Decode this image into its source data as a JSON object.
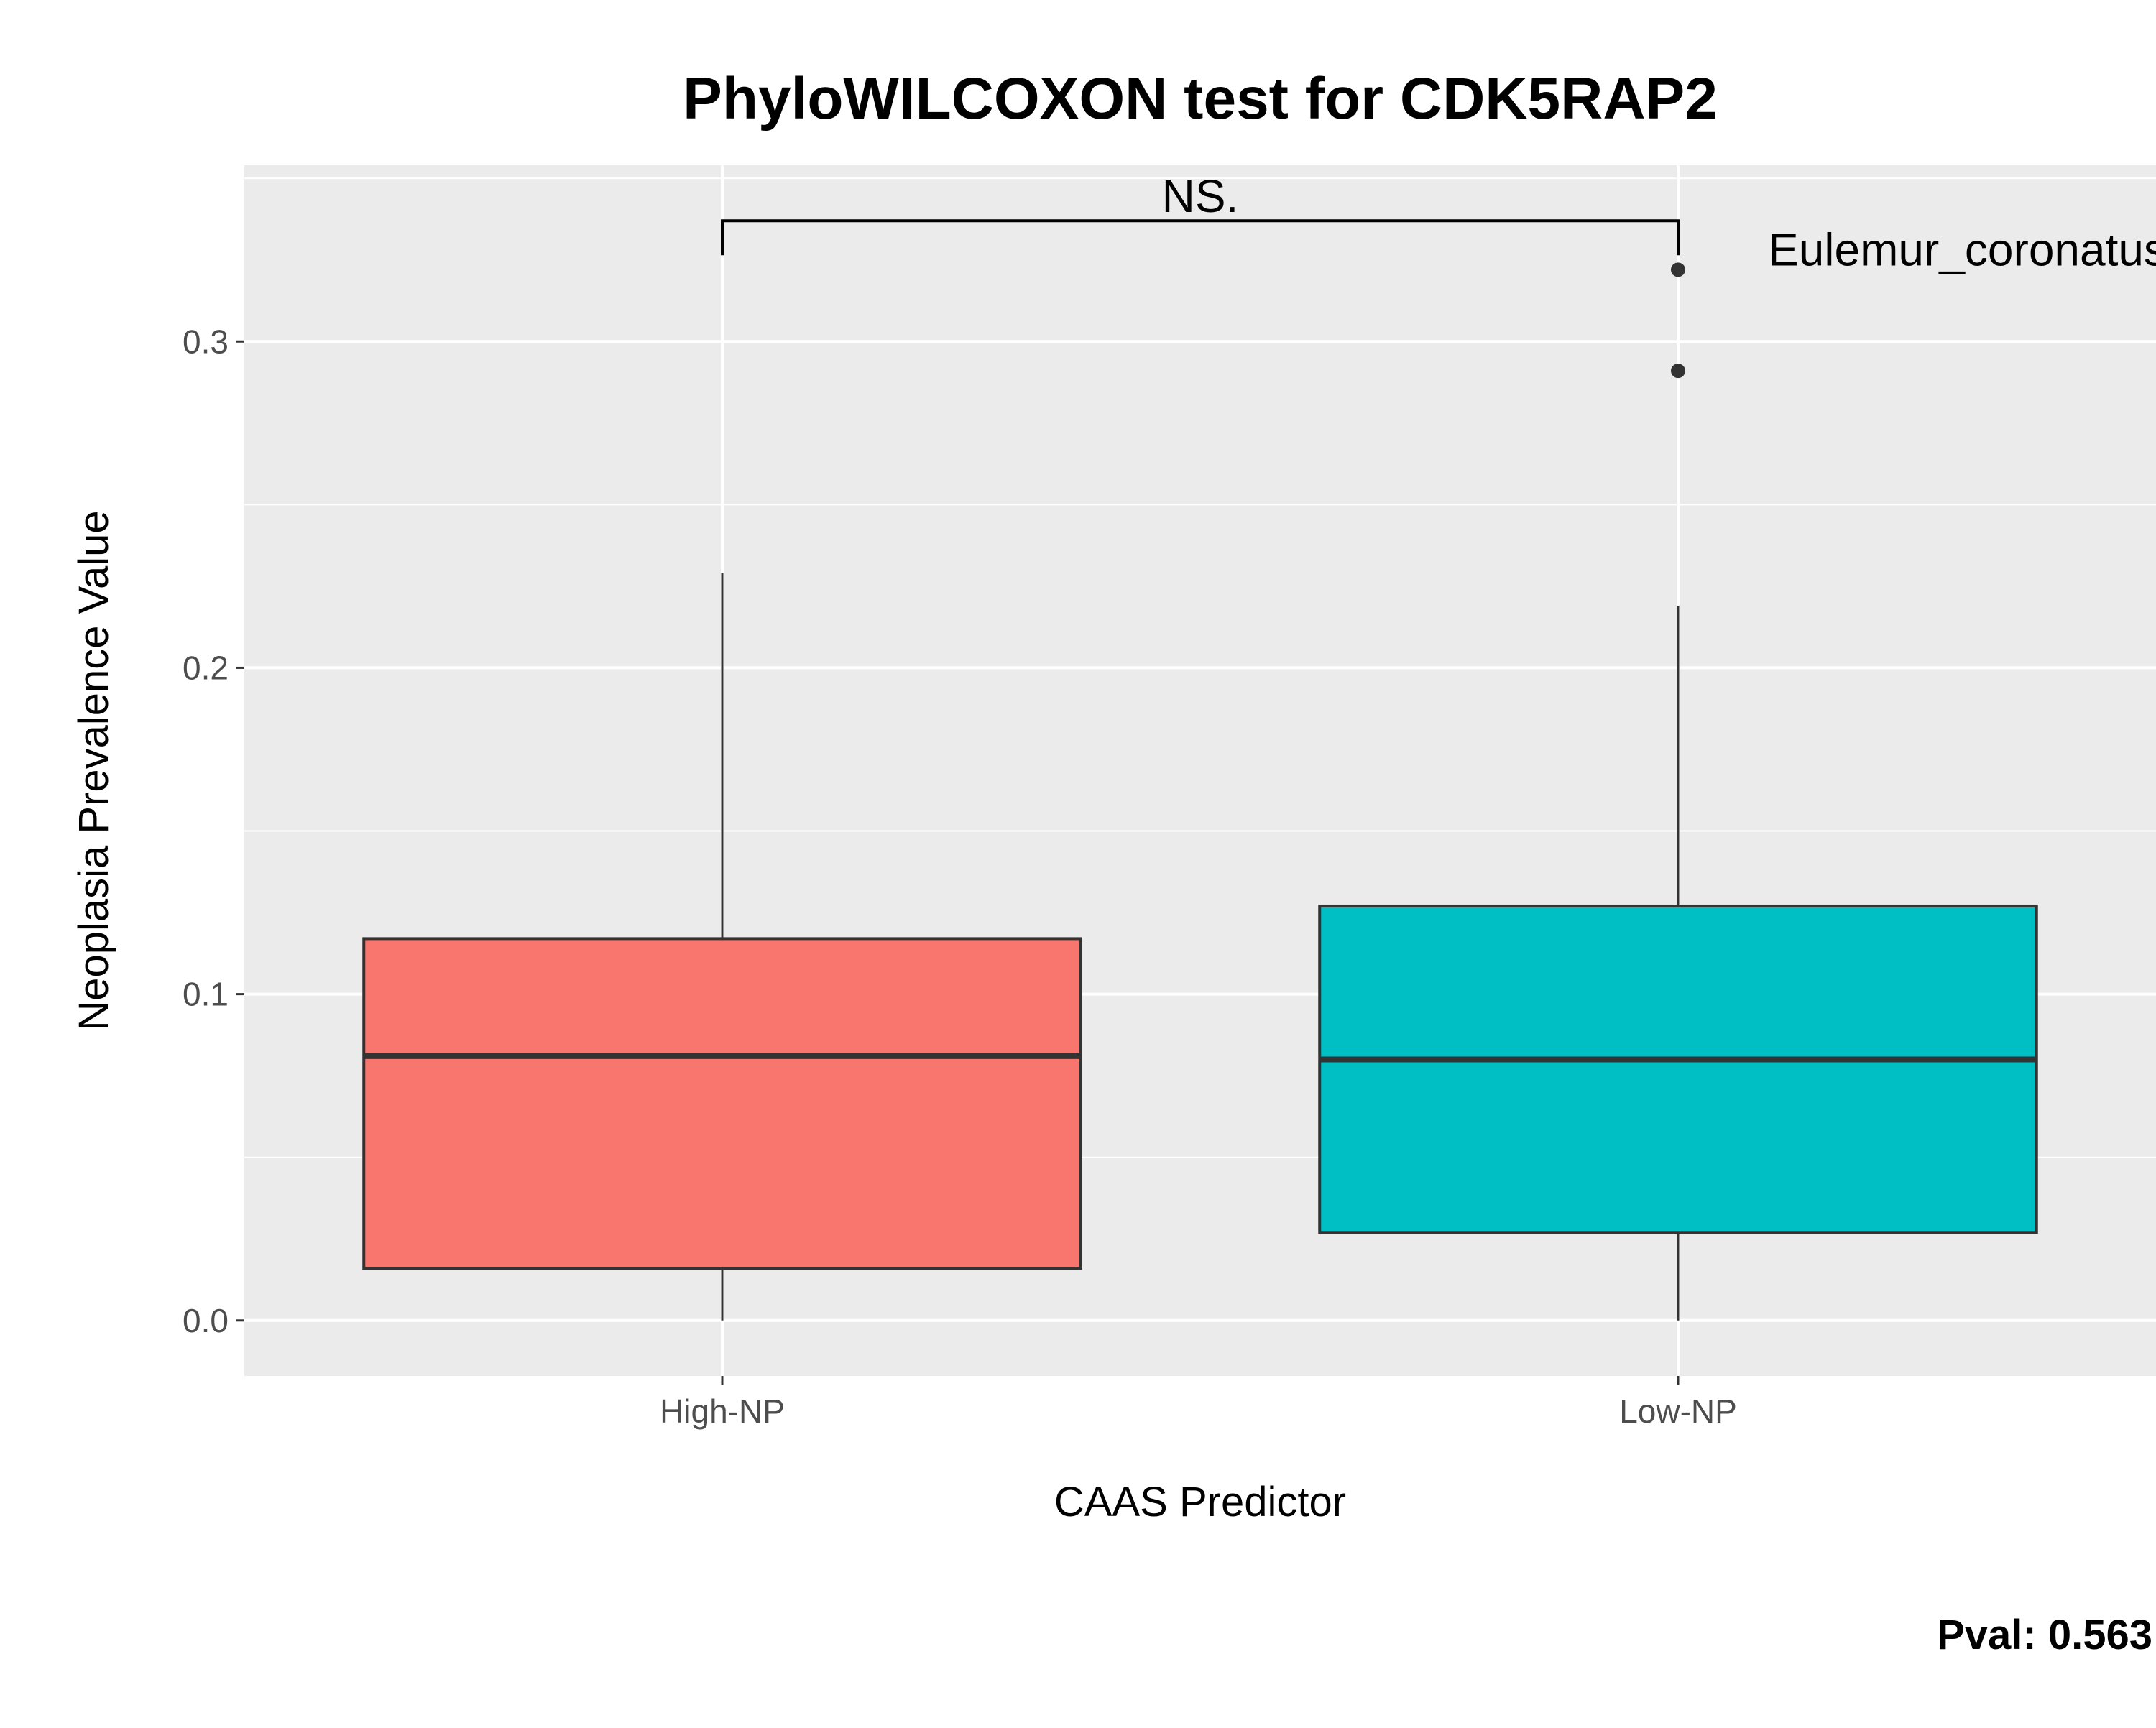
{
  "chart_data": {
    "type": "boxplot",
    "title": "PhyloWILCOXON test for CDK5RAP2",
    "xlabel": "CAAS Predictor",
    "ylabel": "Neoplasia Prevalence Value",
    "categories": [
      "High-NP",
      "Low-NP"
    ],
    "ylim": [
      -0.017,
      0.354
    ],
    "yticks": [
      0.0,
      0.1,
      0.2,
      0.3
    ],
    "ytick_labels": [
      "0.0",
      "0.1",
      "0.2",
      "0.3"
    ],
    "grid": true,
    "legend": "none",
    "boxes": [
      {
        "category": "High-NP",
        "whisker_low": 0.0,
        "q1": 0.016,
        "median": 0.081,
        "q3": 0.117,
        "whisker_high": 0.229,
        "outliers": [],
        "color": "#F8766D"
      },
      {
        "category": "Low-NP",
        "whisker_low": 0.0,
        "q1": 0.027,
        "median": 0.08,
        "q3": 0.127,
        "whisker_high": 0.219,
        "outliers": [
          0.322,
          0.291
        ],
        "color": "#00BFC4"
      }
    ],
    "significance": {
      "from": "High-NP",
      "to": "Low-NP",
      "label": "NS.",
      "y": 0.337
    },
    "outlier_label": {
      "category": "Low-NP",
      "y": 0.322,
      "text": "Eulemur_coronatus"
    },
    "pval_label": "Pval:  0.563"
  }
}
